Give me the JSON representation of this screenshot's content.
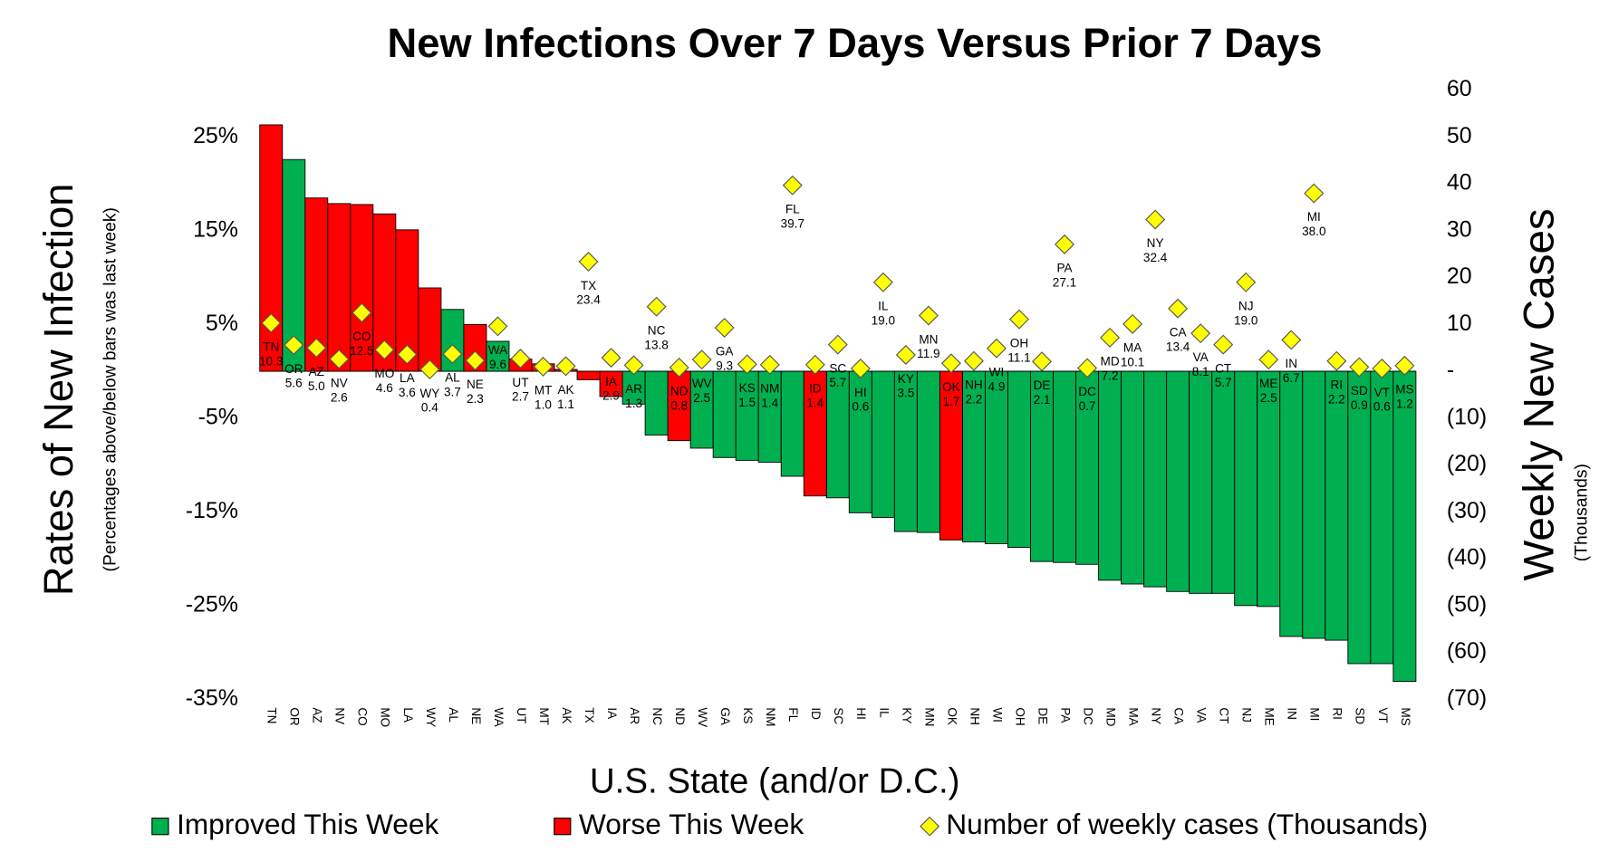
{
  "chart_data": {
    "type": "bar",
    "title": "New Infections Over 7 Days Versus Prior 7 Days",
    "xlabel": "U.S. State (and/or D.C.)",
    "ylabel": "Rates of New Infection",
    "ylabel_sub": "(Percentages above/below bars was last week)",
    "y2label": "Weekly New Cases",
    "y2label_sub": "(Thousands)",
    "categories": [
      "TN",
      "OR",
      "AZ",
      "NV",
      "CO",
      "MO",
      "LA",
      "WY",
      "AL",
      "NE",
      "WA",
      "UT",
      "MT",
      "AK",
      "TX",
      "IA",
      "AR",
      "NC",
      "ND",
      "WV",
      "GA",
      "KS",
      "NM",
      "FL",
      "ID",
      "SC",
      "HI",
      "IL",
      "KY",
      "MN",
      "OK",
      "NH",
      "WI",
      "OH",
      "DE",
      "PA",
      "DC",
      "MD",
      "MA",
      "NY",
      "CA",
      "VA",
      "CT",
      "NJ",
      "ME",
      "IN",
      "MI",
      "RI",
      "SD",
      "VT",
      "MS"
    ],
    "ylim": [
      -35,
      30
    ],
    "yticks": [
      {
        "value": -35,
        "label": "-35%"
      },
      {
        "value": -25,
        "label": "-25%"
      },
      {
        "value": -15,
        "label": "-15%"
      },
      {
        "value": -5,
        "label": "-5%"
      },
      {
        "value": 5,
        "label": "5%"
      },
      {
        "value": 15,
        "label": "15%"
      },
      {
        "value": 25,
        "label": "25%"
      }
    ],
    "y2lim": [
      -70,
      60
    ],
    "y2ticks": [
      {
        "value": -70,
        "label": "(70)"
      },
      {
        "value": -60,
        "label": "(60)"
      },
      {
        "value": -50,
        "label": "(50)"
      },
      {
        "value": -40,
        "label": "(40)"
      },
      {
        "value": -30,
        "label": "(30)"
      },
      {
        "value": -20,
        "label": "(20)"
      },
      {
        "value": -10,
        "label": "(10)"
      },
      {
        "value": 0,
        "label": "-"
      },
      10,
      20,
      30,
      40,
      50,
      60
    ],
    "grid": false,
    "legend": "bottom",
    "series": [
      {
        "name": "Improved This Week",
        "color": "#00b050",
        "values": [
          null,
          22.6,
          null,
          null,
          null,
          null,
          null,
          null,
          6.6,
          null,
          3.2,
          null,
          null,
          null,
          null,
          null,
          -3.5,
          -6.8,
          null,
          -8.2,
          -9.2,
          -9.5,
          -9.7,
          -11.2,
          null,
          -13.5,
          -15.1,
          -15.6,
          -17.1,
          -17.2,
          null,
          -18.2,
          -18.4,
          -18.8,
          -20.3,
          -20.4,
          -20.6,
          -22.3,
          -22.7,
          -23.0,
          -23.5,
          -23.7,
          -23.7,
          -25.0,
          -25.1,
          -28.3,
          -28.5,
          -28.7,
          -31.2,
          -31.2,
          -33.1
        ]
      },
      {
        "name": "Worse This Week",
        "color": "#ff0000",
        "values": [
          26.3,
          null,
          18.5,
          17.9,
          17.8,
          16.8,
          15.1,
          8.9,
          null,
          5.0,
          null,
          1.3,
          0.8,
          0.2,
          -0.9,
          -2.7,
          null,
          null,
          -7.4,
          null,
          null,
          null,
          null,
          null,
          -13.3,
          null,
          null,
          null,
          null,
          null,
          -18.0,
          null,
          null,
          null,
          null,
          null,
          null,
          null,
          null,
          null,
          null,
          null,
          null,
          null,
          null,
          null,
          null,
          null,
          null,
          null,
          null
        ]
      },
      {
        "name": "Number of weekly cases (Thousands)",
        "color": "#ffff00",
        "axis": "y2",
        "values": [
          10.3,
          5.6,
          5.0,
          2.6,
          12.5,
          4.6,
          3.6,
          0.4,
          3.7,
          2.3,
          9.6,
          2.7,
          1.0,
          1.1,
          23.4,
          2.9,
          1.3,
          13.8,
          0.8,
          2.5,
          9.3,
          1.5,
          1.4,
          39.7,
          1.4,
          5.7,
          0.6,
          19.0,
          3.5,
          11.9,
          1.7,
          2.2,
          4.9,
          11.1,
          2.1,
          27.1,
          0.7,
          7.2,
          10.1,
          32.4,
          13.4,
          8.1,
          5.7,
          19.0,
          2.5,
          6.7,
          38.0,
          2.2,
          0.9,
          0.6,
          1.2
        ],
        "value_labels": [
          "10.3",
          "5.6",
          "5.0",
          "2.6",
          "12.5",
          "4.6",
          "3.6",
          "0.4",
          "3.7",
          "2.3",
          "9.6",
          "2.7",
          "1.0",
          "1.1",
          "23.4",
          "2.9",
          "1.3",
          "13.8",
          "0.8",
          "2.5",
          "9.3",
          "1.5",
          "1.4",
          "39.7",
          "1.4",
          "5.7",
          "0.6",
          "19.0",
          "3.5",
          "11.9",
          "1.7",
          "2.2",
          "4.9",
          "11.1",
          "2.1",
          "27.1",
          "0.7",
          "7.2",
          "10.1",
          "32.4",
          "13.4",
          "8.1",
          "5.7",
          "19.0",
          "2.5",
          "6.7",
          "38.0",
          "2.2",
          "0.9",
          "0.6",
          "1.2"
        ]
      }
    ]
  }
}
